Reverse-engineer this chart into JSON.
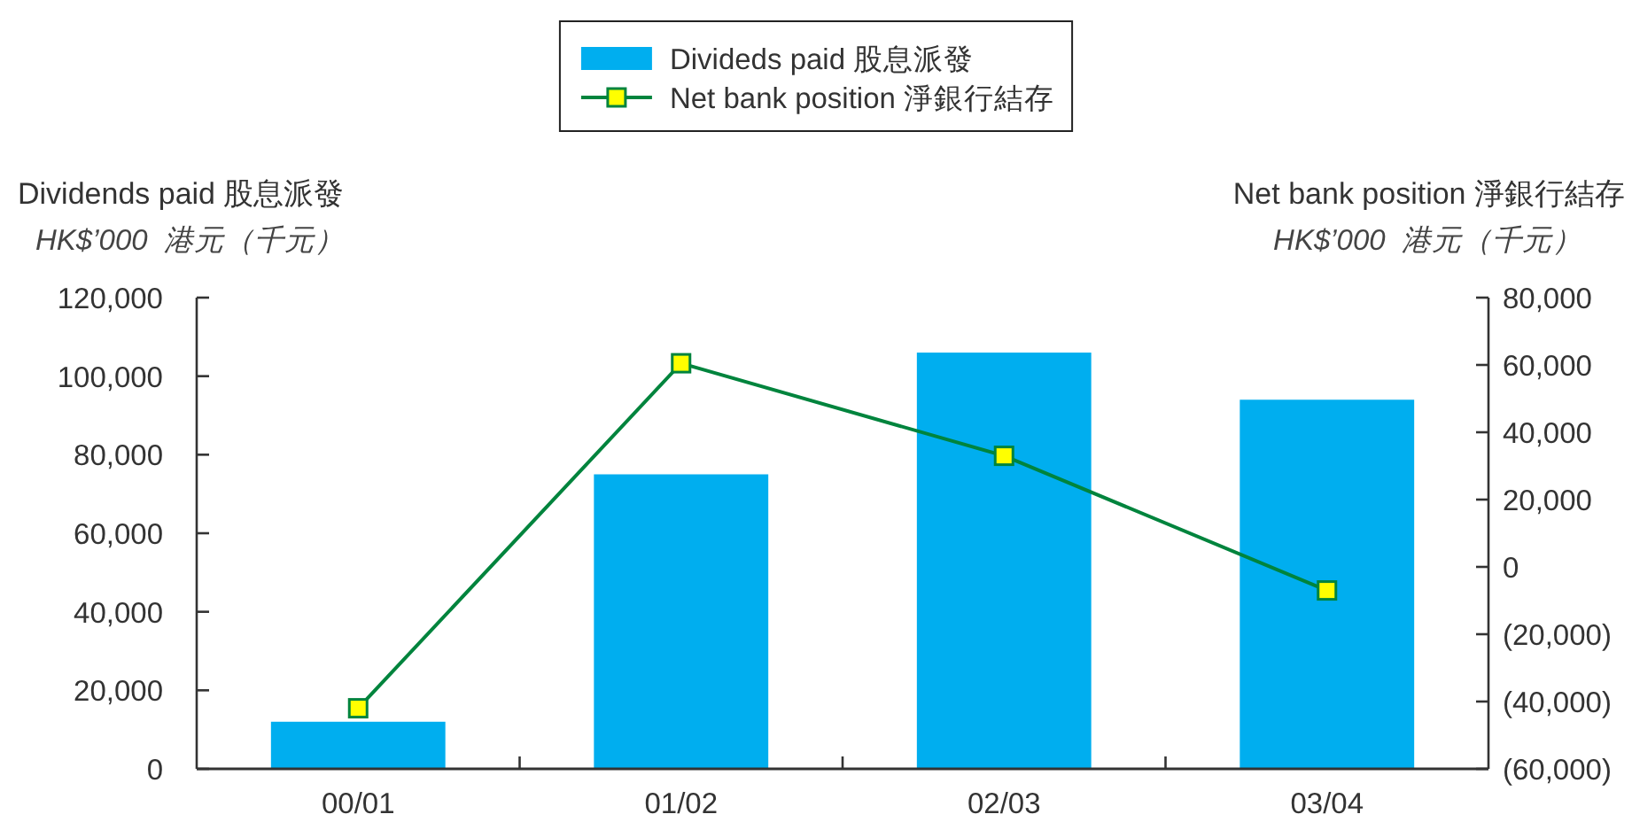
{
  "chart_data": {
    "type": "bar",
    "categories": [
      "00/01",
      "01/02",
      "02/03",
      "03/04"
    ],
    "series": [
      {
        "name": "Divideds paid 股息派發",
        "color": "#00aeef",
        "values": [
          12000,
          75000,
          106000,
          94000
        ]
      },
      {
        "name": "Net bank position 淨銀行結存",
        "type": "line",
        "axis": "y2",
        "color": "#00843d",
        "marker": "square",
        "values": [
          -42000,
          60500,
          33000,
          -7000
        ]
      }
    ],
    "ylabel": "Dividends paid 股息派發",
    "y2label": "Net bank position 淨銀行結存",
    "annotations": [
      "HK$’000  港元（千元）",
      "HK$’000  港元（千元）"
    ],
    "ylim": [
      0,
      120000
    ],
    "yticks": [
      0,
      {
        "value": 20000,
        "label": "20,000"
      },
      {
        "value": 40000,
        "label": "40,000"
      },
      {
        "value": 60000,
        "label": "60,000"
      },
      {
        "value": 80000,
        "label": "80,000"
      },
      {
        "value": 100000,
        "label": "100,000"
      },
      {
        "value": 120000,
        "label": "120,000"
      }
    ],
    "y2lim": [
      -60000,
      80000
    ],
    "y2ticks": [
      {
        "value": -60000,
        "label": "(60,000)"
      },
      {
        "value": -40000,
        "label": "(40,000)"
      },
      {
        "value": -20000,
        "label": "(20,000)"
      },
      0,
      {
        "value": 20000,
        "label": "20,000"
      },
      {
        "value": 40000,
        "label": "40,000"
      },
      {
        "value": 60000,
        "label": "60,000"
      },
      {
        "value": 80000,
        "label": "80,000"
      }
    ],
    "legend": "top"
  }
}
